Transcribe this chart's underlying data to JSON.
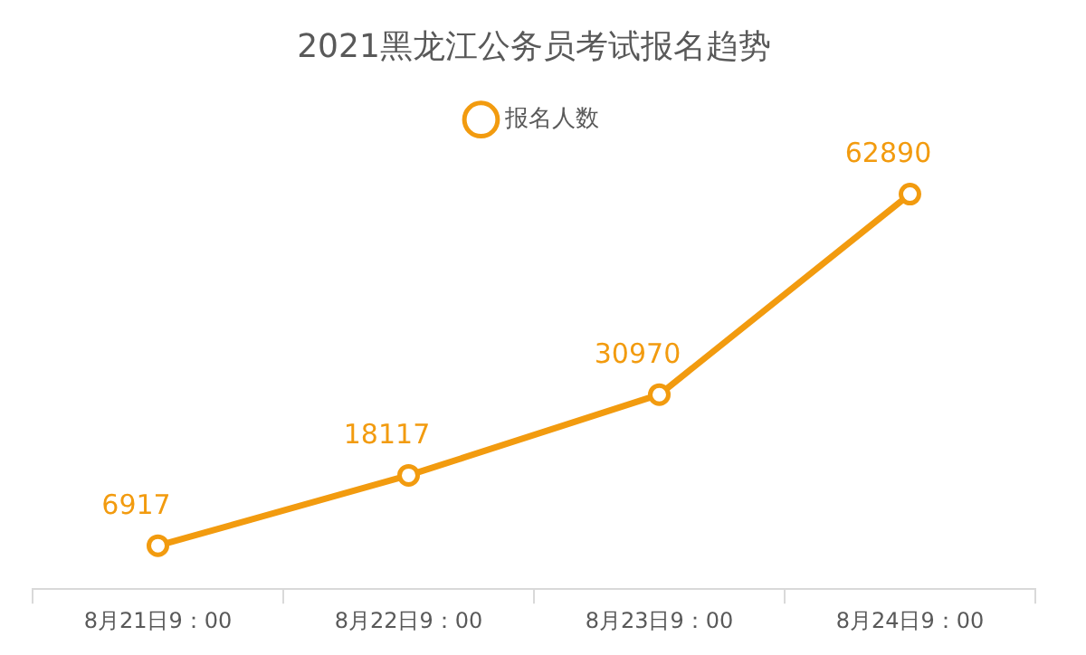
{
  "chart_data": {
    "type": "line",
    "title": "2021黑龙江公务员考试报名趋势",
    "categories": [
      "8月21日9：00",
      "8月22日9：00",
      "8月23日9：00",
      "8月24日9：00"
    ],
    "series": [
      {
        "name": "报名人数",
        "color": "#f29b0f",
        "values": [
          6917,
          18117,
          30970,
          62890
        ]
      }
    ],
    "data_labels": true,
    "legend": "top",
    "grid": false,
    "marker": "circle",
    "line_style": "solid",
    "tick_labels": "x"
  }
}
